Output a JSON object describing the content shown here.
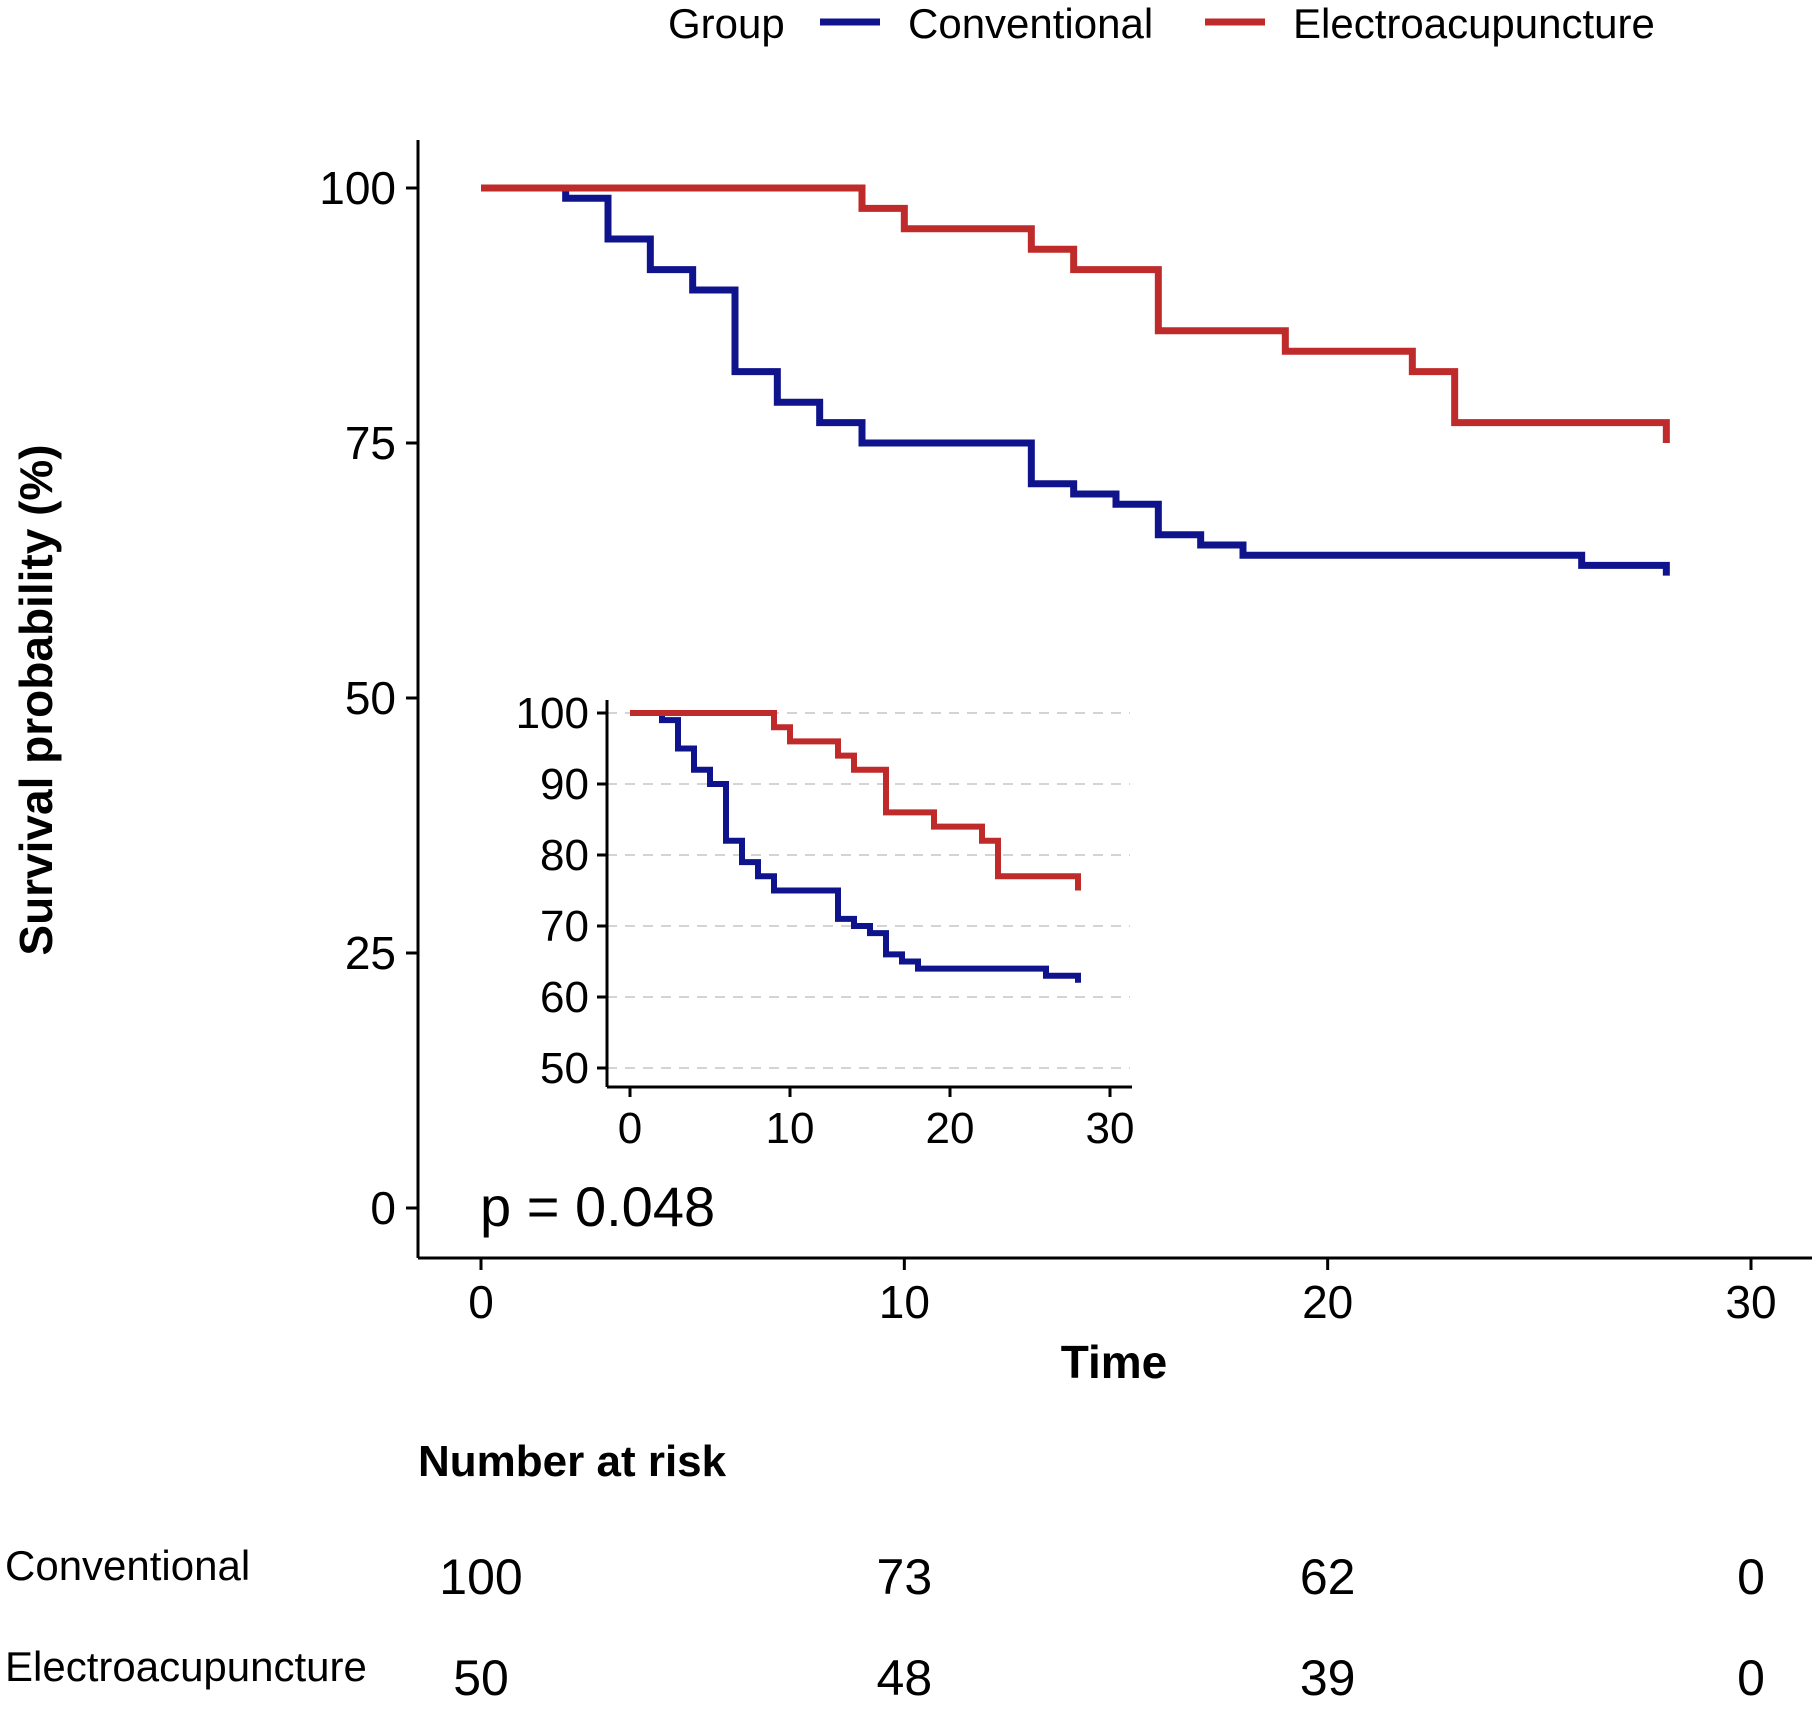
{
  "chart_data": {
    "type": "line",
    "subtype": "kaplan-meier",
    "legend": {
      "title": "Group",
      "position": "top",
      "entries": [
        {
          "name": "Conventional",
          "color": "#10148c"
        },
        {
          "name": "Electroacupuncture",
          "color": "#bf2a2a"
        }
      ]
    },
    "xlabel": "Time",
    "ylabel": "Survival probability (%)",
    "xlim": [
      0,
      30
    ],
    "ylim": [
      0,
      100
    ],
    "xticks": [
      0,
      10,
      20,
      30
    ],
    "yticks": [
      0,
      25,
      50,
      75,
      100
    ],
    "grid": false,
    "annotation": "p = 0.048",
    "series": [
      {
        "name": "Conventional",
        "color": "#10148c",
        "x": [
          0,
          2,
          3,
          4,
          5,
          6,
          7,
          8,
          9,
          13,
          14,
          15,
          16,
          17,
          18,
          26,
          28
        ],
        "y": [
          100,
          99,
          95,
          92,
          90,
          82,
          79,
          77,
          75,
          71,
          70,
          69,
          66,
          65,
          64,
          63,
          62
        ]
      },
      {
        "name": "Electroacupuncture",
        "color": "#bf2a2a",
        "x": [
          0,
          9,
          10,
          13,
          14,
          16,
          19,
          22,
          23,
          28
        ],
        "y": [
          100,
          98,
          96,
          94,
          92,
          86,
          84,
          82,
          77,
          75
        ]
      }
    ],
    "inset": {
      "xlim": [
        0,
        30
      ],
      "ylim": [
        50,
        100
      ],
      "xticks": [
        0,
        10,
        20,
        30
      ],
      "yticks": [
        50,
        60,
        70,
        80,
        90,
        100
      ],
      "grid": "horizontal-dashed"
    },
    "risk_table": {
      "title": "Number at risk",
      "times": [
        0,
        10,
        20,
        30
      ],
      "rows": [
        {
          "label": "Conventional",
          "values": [
            "100",
            "73",
            "62",
            "0"
          ]
        },
        {
          "label": "Electroacupuncture",
          "values": [
            "50",
            "48",
            "39",
            "0"
          ]
        }
      ]
    }
  }
}
